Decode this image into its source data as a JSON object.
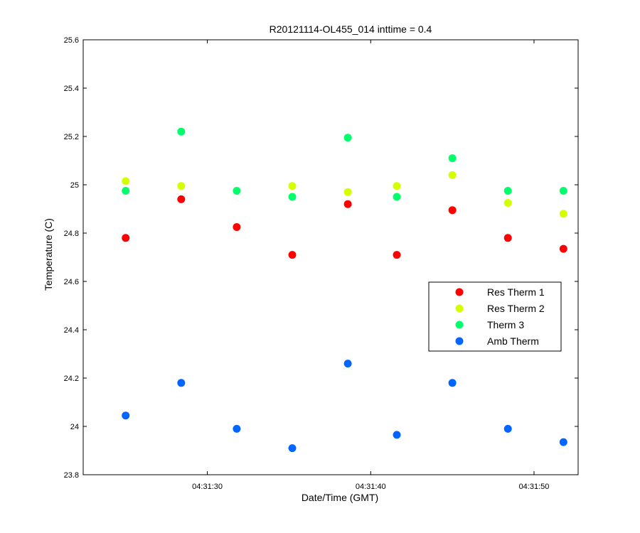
{
  "chart_data": {
    "type": "scatter",
    "title": "R20121114-OL455_014 inttime = 0.4",
    "xlabel": "Date/Time (GMT)",
    "ylabel": "Temperature (C)",
    "x_unit": "time (GMT)",
    "xlim": [
      "04:31:22.4",
      "04:31:52.7"
    ],
    "ylim": [
      23.8,
      25.6
    ],
    "y_ticks": [
      23.8,
      24,
      24.2,
      24.4,
      24.6,
      24.8,
      25,
      25.2,
      25.4,
      25.6
    ],
    "y_tick_labels": [
      "23.8",
      "24",
      "24.2",
      "24.4",
      "24.6",
      "24.8",
      "25",
      "25.2",
      "25.4",
      "25.6"
    ],
    "x_ticks": [
      "04:31:30",
      "04:31:40",
      "04:31:50"
    ],
    "x_tick_labels": [
      "04:31:30",
      "04:31:40",
      "04:31:50"
    ],
    "x": [
      "04:31:25.0",
      "04:31:28.4",
      "04:31:31.8",
      "04:31:35.2",
      "04:31:38.6",
      "04:31:41.6",
      "04:31:45.0",
      "04:31:48.4",
      "04:31:51.8"
    ],
    "series": [
      {
        "name": "Res Therm 1",
        "color": "#ff0000",
        "values": [
          24.78,
          24.94,
          24.825,
          24.71,
          24.92,
          24.71,
          24.895,
          24.78,
          24.735
        ]
      },
      {
        "name": "Res Therm 2",
        "color": "#d4ff00",
        "values": [
          25.015,
          24.995,
          null,
          24.995,
          24.97,
          24.995,
          25.04,
          24.925,
          24.88
        ]
      },
      {
        "name": "Therm 3",
        "color": "#00ff6a",
        "values": [
          24.975,
          25.22,
          24.975,
          24.95,
          25.195,
          24.95,
          25.11,
          24.975,
          24.975
        ]
      },
      {
        "name": "Amb Therm",
        "color": "#0066ff",
        "values": [
          24.045,
          24.18,
          23.99,
          23.91,
          24.26,
          23.965,
          24.18,
          23.99,
          23.935
        ]
      }
    ],
    "grid": false,
    "legend_position": "right"
  }
}
